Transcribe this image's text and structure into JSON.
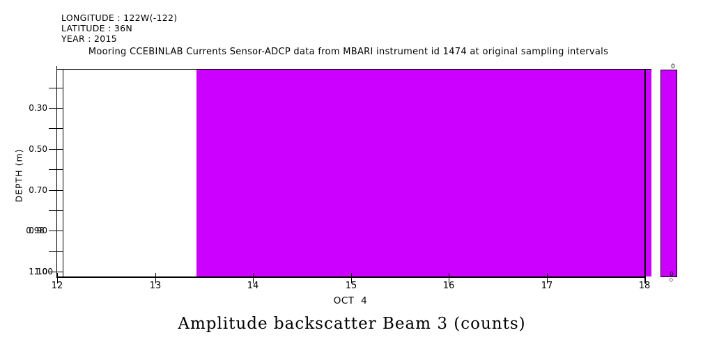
{
  "header": {
    "longitude_label": "LONGITUDE : 122W(-122)",
    "latitude_label": "LATITUDE : 36N",
    "year_label": "YEAR : 2015",
    "plot_title": "Mooring CCEBINLAB Currents Sensor-ADCP data from MBARI instrument id 1474 at original sampling intervals"
  },
  "chart_data": {
    "type": "heatmap",
    "title": "Amplitude backscatter Beam 3 (counts)",
    "xlabel": "OCT  4",
    "ylabel": "DEPTH (m)",
    "x_axis": {
      "tick_labels": [
        "12",
        "13",
        "14",
        "15",
        "16",
        "17",
        "18"
      ],
      "tick_values": [
        12,
        13,
        14,
        15,
        16,
        17,
        18
      ],
      "range": [
        12.0,
        18.07
      ],
      "date_label": "OCT  4",
      "year": "2015"
    },
    "y_axis": {
      "label": "DEPTH (m)",
      "range": [
        0.105,
        1.125
      ],
      "minor_tick_values": [
        0.2,
        0.3,
        0.4,
        0.5,
        0.6,
        0.7,
        0.8,
        0.9,
        1.0,
        1.1
      ],
      "tick_labels": [
        {
          "value": 0.3,
          "label": "0.30"
        },
        {
          "value": 0.5,
          "label": "0.50"
        },
        {
          "value": 0.7,
          "label": "0.70"
        },
        {
          "value": 0.9,
          "label": "0.90"
        },
        {
          "value": 1.1,
          "label": "1.10"
        }
      ],
      "overlapping_labels": [
        {
          "value": 0.9,
          "label": "0.98",
          "dx": -4
        },
        {
          "value": 1.1,
          "label": "1.00",
          "dx": 8
        }
      ]
    },
    "series": [
      {
        "name": "no-data-gap",
        "x_start": 12.0,
        "x_end": 13.42,
        "depth_start": 0.105,
        "depth_end": 1.125,
        "value": null,
        "color": "#FFFFFF"
      },
      {
        "name": "backscatter-uniform-fill",
        "x_start": 13.42,
        "x_end": 18.07,
        "depth_start": 0.105,
        "depth_end": 1.125,
        "value": 0,
        "color": "#CC00FF"
      }
    ],
    "colorbar": {
      "color": "#CC00FF",
      "top_label": "0",
      "bottom_label": "0",
      "marker": "◇"
    },
    "colors": {
      "fill": "#CC00FF",
      "axis": "#000000",
      "background": "#FFFFFF"
    },
    "layout_hints": {
      "grid": false,
      "legend": "none",
      "colorbar_position": "right-strip"
    }
  }
}
